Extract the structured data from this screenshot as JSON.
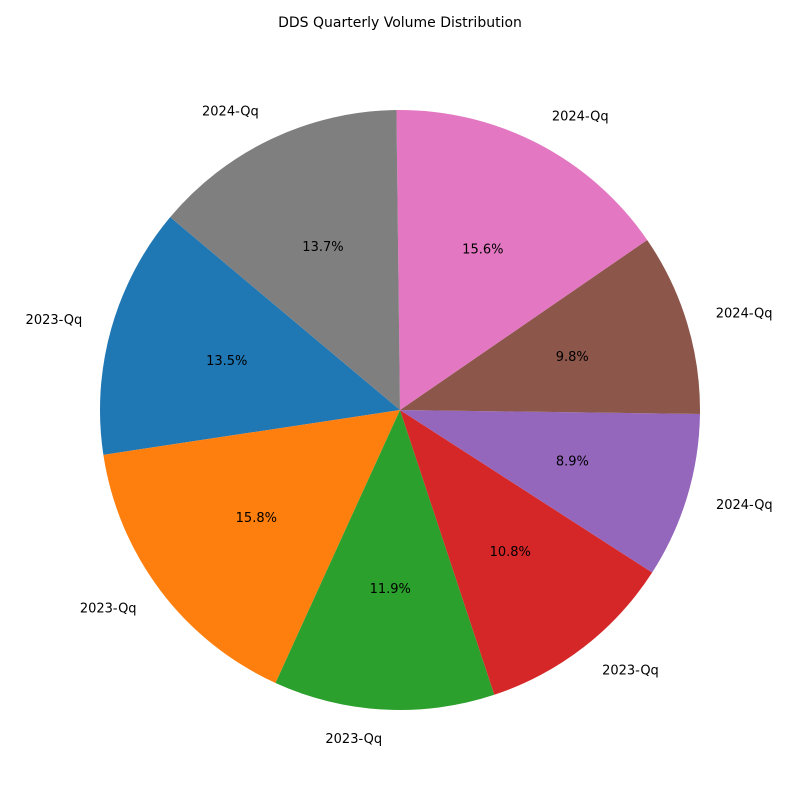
{
  "chart_data": {
    "type": "pie",
    "title": "DDS Quarterly Volume Distribution",
    "start_angle_deg": 140,
    "direction": "counterclockwise",
    "slices": [
      {
        "label": "2023-Qq",
        "percent": 13.5,
        "pct_text": "13.5%",
        "color": "#1f77b4"
      },
      {
        "label": "2023-Qq",
        "percent": 15.8,
        "pct_text": "15.8%",
        "color": "#ff7f0e"
      },
      {
        "label": "2023-Qq",
        "percent": 11.9,
        "pct_text": "11.9%",
        "color": "#2ca02c"
      },
      {
        "label": "2023-Qq",
        "percent": 10.8,
        "pct_text": "10.8%",
        "color": "#d62728"
      },
      {
        "label": "2024-Qq",
        "percent": 8.9,
        "pct_text": "8.9%",
        "color": "#9467bd"
      },
      {
        "label": "2024-Qq",
        "percent": 9.8,
        "pct_text": "9.8%",
        "color": "#8c564b"
      },
      {
        "label": "2024-Qq",
        "percent": 15.6,
        "pct_text": "15.6%",
        "color": "#e377c2"
      },
      {
        "label": "2024-Qq",
        "percent": 13.7,
        "pct_text": "13.7%",
        "color": "#7f7f7f"
      }
    ]
  }
}
